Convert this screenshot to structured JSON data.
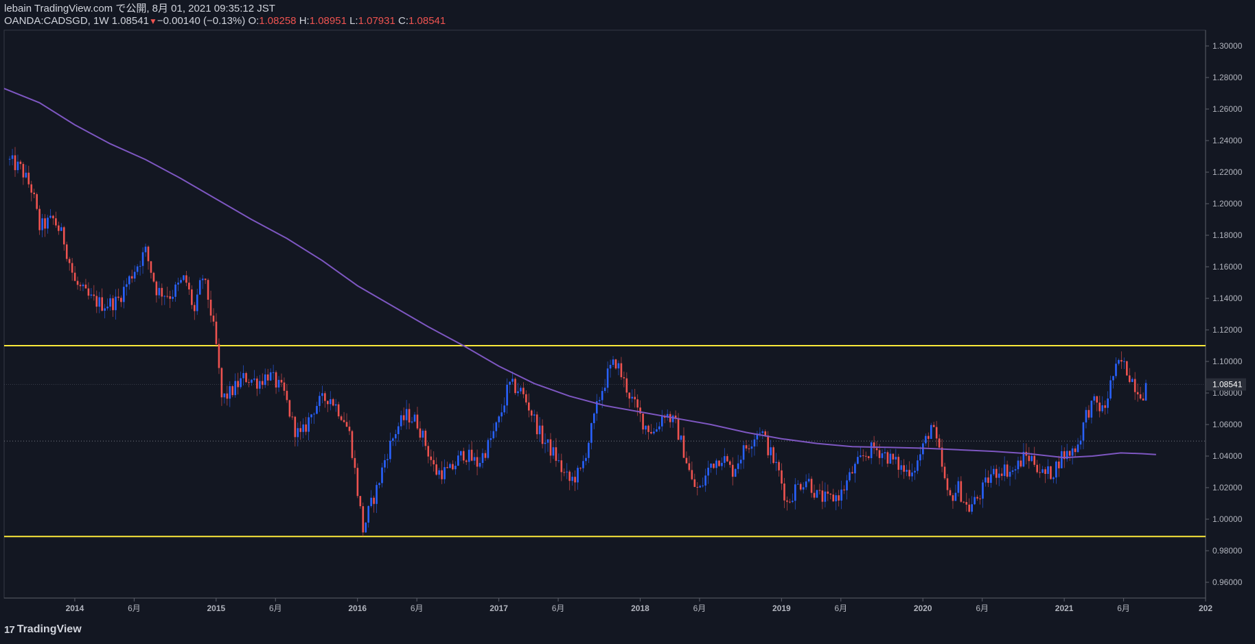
{
  "header": {
    "publisher": "lebain TradingView.com で公開, 8月 01, 2021 09:35:12 JST",
    "symbol": "OANDA:CADSGD, 1W",
    "last": "1.08541",
    "change": "−0.00140 (−0.13%)",
    "o_label": "O:",
    "o": "1.08258",
    "h_label": "H:",
    "h": "1.08951",
    "l_label": "L:",
    "l": "1.07931",
    "c_label": "C:",
    "c": "1.08541"
  },
  "branding": {
    "logo_text": "17",
    "name": "TradingView"
  },
  "colors": {
    "background": "#131722",
    "up": "#2962ff",
    "down": "#ef5350",
    "ma": "#7e57c2",
    "level": "#ffeb3b"
  },
  "chart_data": {
    "type": "candlestick",
    "timeframe": "1W",
    "ylim": [
      0.95,
      1.31
    ],
    "xlim": [
      2013.5,
      2022.0
    ],
    "y_ticks": [
      "1.30000",
      "1.28000",
      "1.26000",
      "1.24000",
      "1.22000",
      "1.20000",
      "1.18000",
      "1.16000",
      "1.14000",
      "1.12000",
      "1.10000",
      "1.08000",
      "1.06000",
      "1.04000",
      "1.02000",
      "1.00000",
      "0.98000",
      "0.96000"
    ],
    "x_ticks": [
      {
        "t": 2014.0,
        "label": "2014",
        "major": true
      },
      {
        "t": 2014.42,
        "label": "6月",
        "major": false
      },
      {
        "t": 2015.0,
        "label": "2015",
        "major": true
      },
      {
        "t": 2015.42,
        "label": "6月",
        "major": false
      },
      {
        "t": 2016.0,
        "label": "2016",
        "major": true
      },
      {
        "t": 2016.42,
        "label": "6月",
        "major": false
      },
      {
        "t": 2017.0,
        "label": "2017",
        "major": true
      },
      {
        "t": 2017.42,
        "label": "6月",
        "major": false
      },
      {
        "t": 2018.0,
        "label": "2018",
        "major": true
      },
      {
        "t": 2018.42,
        "label": "6月",
        "major": false
      },
      {
        "t": 2019.0,
        "label": "2019",
        "major": true
      },
      {
        "t": 2019.42,
        "label": "6月",
        "major": false
      },
      {
        "t": 2020.0,
        "label": "2020",
        "major": true
      },
      {
        "t": 2020.42,
        "label": "6月",
        "major": false
      },
      {
        "t": 2021.0,
        "label": "2021",
        "major": true
      },
      {
        "t": 2021.42,
        "label": "6月",
        "major": false
      },
      {
        "t": 2022.0,
        "label": "202",
        "major": true
      }
    ],
    "last_price_label": "1.08541",
    "last_price": 1.08541,
    "horizontal_levels": [
      1.11,
      0.989
    ],
    "dotted_level": 1.0495,
    "anchors": [
      [
        2013.52,
        1.228
      ],
      [
        2013.62,
        1.222
      ],
      [
        2013.7,
        1.208
      ],
      [
        2013.75,
        1.185
      ],
      [
        2013.85,
        1.19
      ],
      [
        2013.92,
        1.178
      ],
      [
        2014.0,
        1.15
      ],
      [
        2014.1,
        1.14
      ],
      [
        2014.2,
        1.136
      ],
      [
        2014.3,
        1.138
      ],
      [
        2014.42,
        1.158
      ],
      [
        2014.5,
        1.17
      ],
      [
        2014.58,
        1.145
      ],
      [
        2014.68,
        1.142
      ],
      [
        2014.78,
        1.153
      ],
      [
        2014.85,
        1.13
      ],
      [
        2014.9,
        1.155
      ],
      [
        2014.95,
        1.138
      ],
      [
        2015.0,
        1.11
      ],
      [
        2015.04,
        1.076
      ],
      [
        2015.1,
        1.08
      ],
      [
        2015.2,
        1.09
      ],
      [
        2015.3,
        1.087
      ],
      [
        2015.37,
        1.092
      ],
      [
        2015.48,
        1.08
      ],
      [
        2015.55,
        1.058
      ],
      [
        2015.6,
        1.052
      ],
      [
        2015.7,
        1.072
      ],
      [
        2015.8,
        1.078
      ],
      [
        2015.9,
        1.065
      ],
      [
        2015.95,
        1.052
      ],
      [
        2016.0,
        1.018
      ],
      [
        2016.04,
        0.993
      ],
      [
        2016.08,
        1.005
      ],
      [
        2016.14,
        1.02
      ],
      [
        2016.2,
        1.04
      ],
      [
        2016.28,
        1.058
      ],
      [
        2016.35,
        1.066
      ],
      [
        2016.42,
        1.062
      ],
      [
        2016.48,
        1.048
      ],
      [
        2016.55,
        1.03
      ],
      [
        2016.65,
        1.03
      ],
      [
        2016.75,
        1.042
      ],
      [
        2016.85,
        1.035
      ],
      [
        2016.92,
        1.046
      ],
      [
        2017.0,
        1.062
      ],
      [
        2017.07,
        1.085
      ],
      [
        2017.15,
        1.082
      ],
      [
        2017.22,
        1.07
      ],
      [
        2017.3,
        1.052
      ],
      [
        2017.4,
        1.04
      ],
      [
        2017.45,
        1.03
      ],
      [
        2017.5,
        1.024
      ],
      [
        2017.58,
        1.03
      ],
      [
        2017.65,
        1.055
      ],
      [
        2017.72,
        1.08
      ],
      [
        2017.78,
        1.094
      ],
      [
        2017.83,
        1.1
      ],
      [
        2017.88,
        1.088
      ],
      [
        2017.95,
        1.074
      ],
      [
        2018.03,
        1.06
      ],
      [
        2018.1,
        1.055
      ],
      [
        2018.17,
        1.068
      ],
      [
        2018.25,
        1.06
      ],
      [
        2018.32,
        1.04
      ],
      [
        2018.37,
        1.022
      ],
      [
        2018.42,
        1.018
      ],
      [
        2018.5,
        1.035
      ],
      [
        2018.58,
        1.04
      ],
      [
        2018.65,
        1.03
      ],
      [
        2018.72,
        1.042
      ],
      [
        2018.8,
        1.052
      ],
      [
        2018.85,
        1.058
      ],
      [
        2018.9,
        1.046
      ],
      [
        2018.98,
        1.03
      ],
      [
        2019.04,
        1.01
      ],
      [
        2019.1,
        1.02
      ],
      [
        2019.18,
        1.026
      ],
      [
        2019.25,
        1.015
      ],
      [
        2019.33,
        1.012
      ],
      [
        2019.42,
        1.016
      ],
      [
        2019.5,
        1.03
      ],
      [
        2019.58,
        1.04
      ],
      [
        2019.65,
        1.045
      ],
      [
        2019.72,
        1.042
      ],
      [
        2019.8,
        1.036
      ],
      [
        2019.88,
        1.03
      ],
      [
        2019.95,
        1.034
      ],
      [
        2020.0,
        1.045
      ],
      [
        2020.06,
        1.06
      ],
      [
        2020.12,
        1.04
      ],
      [
        2020.18,
        1.012
      ],
      [
        2020.25,
        1.02
      ],
      [
        2020.32,
        1.006
      ],
      [
        2020.4,
        1.015
      ],
      [
        2020.48,
        1.028
      ],
      [
        2020.56,
        1.032
      ],
      [
        2020.64,
        1.03
      ],
      [
        2020.72,
        1.04
      ],
      [
        2020.78,
        1.038
      ],
      [
        2020.85,
        1.028
      ],
      [
        2020.92,
        1.03
      ],
      [
        2020.98,
        1.04
      ],
      [
        2021.04,
        1.042
      ],
      [
        2021.1,
        1.048
      ],
      [
        2021.16,
        1.068
      ],
      [
        2021.22,
        1.074
      ],
      [
        2021.28,
        1.068
      ],
      [
        2021.34,
        1.09
      ],
      [
        2021.4,
        1.1
      ],
      [
        2021.46,
        1.092
      ],
      [
        2021.52,
        1.082
      ],
      [
        2021.56,
        1.08
      ],
      [
        2021.58,
        1.08541
      ]
    ],
    "moving_average": [
      [
        2013.5,
        1.273
      ],
      [
        2013.75,
        1.264
      ],
      [
        2014.0,
        1.25
      ],
      [
        2014.25,
        1.238
      ],
      [
        2014.5,
        1.228
      ],
      [
        2014.75,
        1.216
      ],
      [
        2015.0,
        1.203
      ],
      [
        2015.25,
        1.19
      ],
      [
        2015.5,
        1.178
      ],
      [
        2015.75,
        1.164
      ],
      [
        2016.0,
        1.148
      ],
      [
        2016.25,
        1.135
      ],
      [
        2016.5,
        1.122
      ],
      [
        2016.75,
        1.11
      ],
      [
        2017.0,
        1.097
      ],
      [
        2017.25,
        1.086
      ],
      [
        2017.5,
        1.078
      ],
      [
        2017.75,
        1.072
      ],
      [
        2018.0,
        1.068
      ],
      [
        2018.25,
        1.064
      ],
      [
        2018.5,
        1.06
      ],
      [
        2018.75,
        1.055
      ],
      [
        2019.0,
        1.051
      ],
      [
        2019.25,
        1.048
      ],
      [
        2019.5,
        1.046
      ],
      [
        2019.75,
        1.0455
      ],
      [
        2020.0,
        1.045
      ],
      [
        2020.25,
        1.044
      ],
      [
        2020.5,
        1.043
      ],
      [
        2020.75,
        1.0415
      ],
      [
        2021.0,
        1.039
      ],
      [
        2021.2,
        1.04
      ],
      [
        2021.4,
        1.042
      ],
      [
        2021.55,
        1.0415
      ],
      [
        2021.65,
        1.041
      ]
    ]
  }
}
